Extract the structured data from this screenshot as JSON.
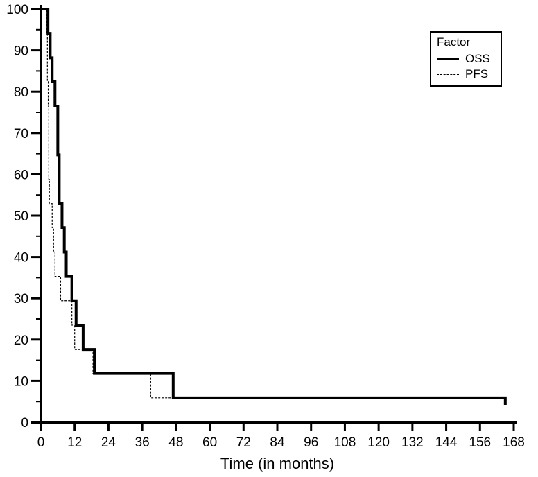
{
  "chart_data": {
    "type": "line",
    "subtype": "kaplan-meier-step",
    "title": "",
    "xlabel": "Time (in months)",
    "ylabel": "",
    "xlim": [
      0,
      168
    ],
    "ylim": [
      0,
      100
    ],
    "x_ticks": [
      0,
      12,
      24,
      36,
      48,
      60,
      72,
      84,
      96,
      108,
      120,
      132,
      144,
      156,
      168
    ],
    "y_ticks": [
      0,
      10,
      20,
      30,
      40,
      50,
      60,
      70,
      80,
      90,
      100
    ],
    "y_minor_ticks": [
      5,
      15,
      25,
      35,
      45,
      55,
      65,
      75,
      85,
      95
    ],
    "grid": false,
    "legend": {
      "title": "Factor",
      "position": "top-right",
      "entries": [
        {
          "label": "OSS",
          "style": "solid-thick"
        },
        {
          "label": "PFS",
          "style": "dashed-thin"
        }
      ]
    },
    "series": [
      {
        "name": "OSS",
        "style": "solid-thick",
        "color": "#000000",
        "steps": [
          {
            "x": 0,
            "y": 100
          },
          {
            "x": 2.5,
            "y": 94.1
          },
          {
            "x": 3.3,
            "y": 88.2
          },
          {
            "x": 4.0,
            "y": 82.4
          },
          {
            "x": 5.0,
            "y": 76.5
          },
          {
            "x": 6.0,
            "y": 64.7
          },
          {
            "x": 6.5,
            "y": 52.9
          },
          {
            "x": 7.5,
            "y": 47.1
          },
          {
            "x": 8.3,
            "y": 41.2
          },
          {
            "x": 9.0,
            "y": 35.3
          },
          {
            "x": 11.0,
            "y": 29.4
          },
          {
            "x": 12.5,
            "y": 23.5
          },
          {
            "x": 15.0,
            "y": 17.6
          },
          {
            "x": 19.0,
            "y": 11.8
          },
          {
            "x": 47.0,
            "y": 5.9
          },
          {
            "x": 165.0,
            "y": 5.9
          }
        ],
        "censor_end": {
          "x": 165.0,
          "y_from": 5.9,
          "y_to": 4.2
        }
      },
      {
        "name": "PFS",
        "style": "dashed-thin",
        "color": "#000000",
        "steps": [
          {
            "x": 0,
            "y": 100
          },
          {
            "x": 2.0,
            "y": 94.1
          },
          {
            "x": 2.3,
            "y": 82.4
          },
          {
            "x": 2.6,
            "y": 76.5
          },
          {
            "x": 2.8,
            "y": 58.8
          },
          {
            "x": 3.0,
            "y": 52.9
          },
          {
            "x": 4.0,
            "y": 47.1
          },
          {
            "x": 4.5,
            "y": 41.2
          },
          {
            "x": 5.0,
            "y": 35.3
          },
          {
            "x": 7.0,
            "y": 29.4
          },
          {
            "x": 11.0,
            "y": 23.5
          },
          {
            "x": 12.0,
            "y": 17.6
          },
          {
            "x": 18.5,
            "y": 11.8
          },
          {
            "x": 39.0,
            "y": 5.9
          },
          {
            "x": 47.0,
            "y": 5.9
          }
        ]
      }
    ]
  }
}
